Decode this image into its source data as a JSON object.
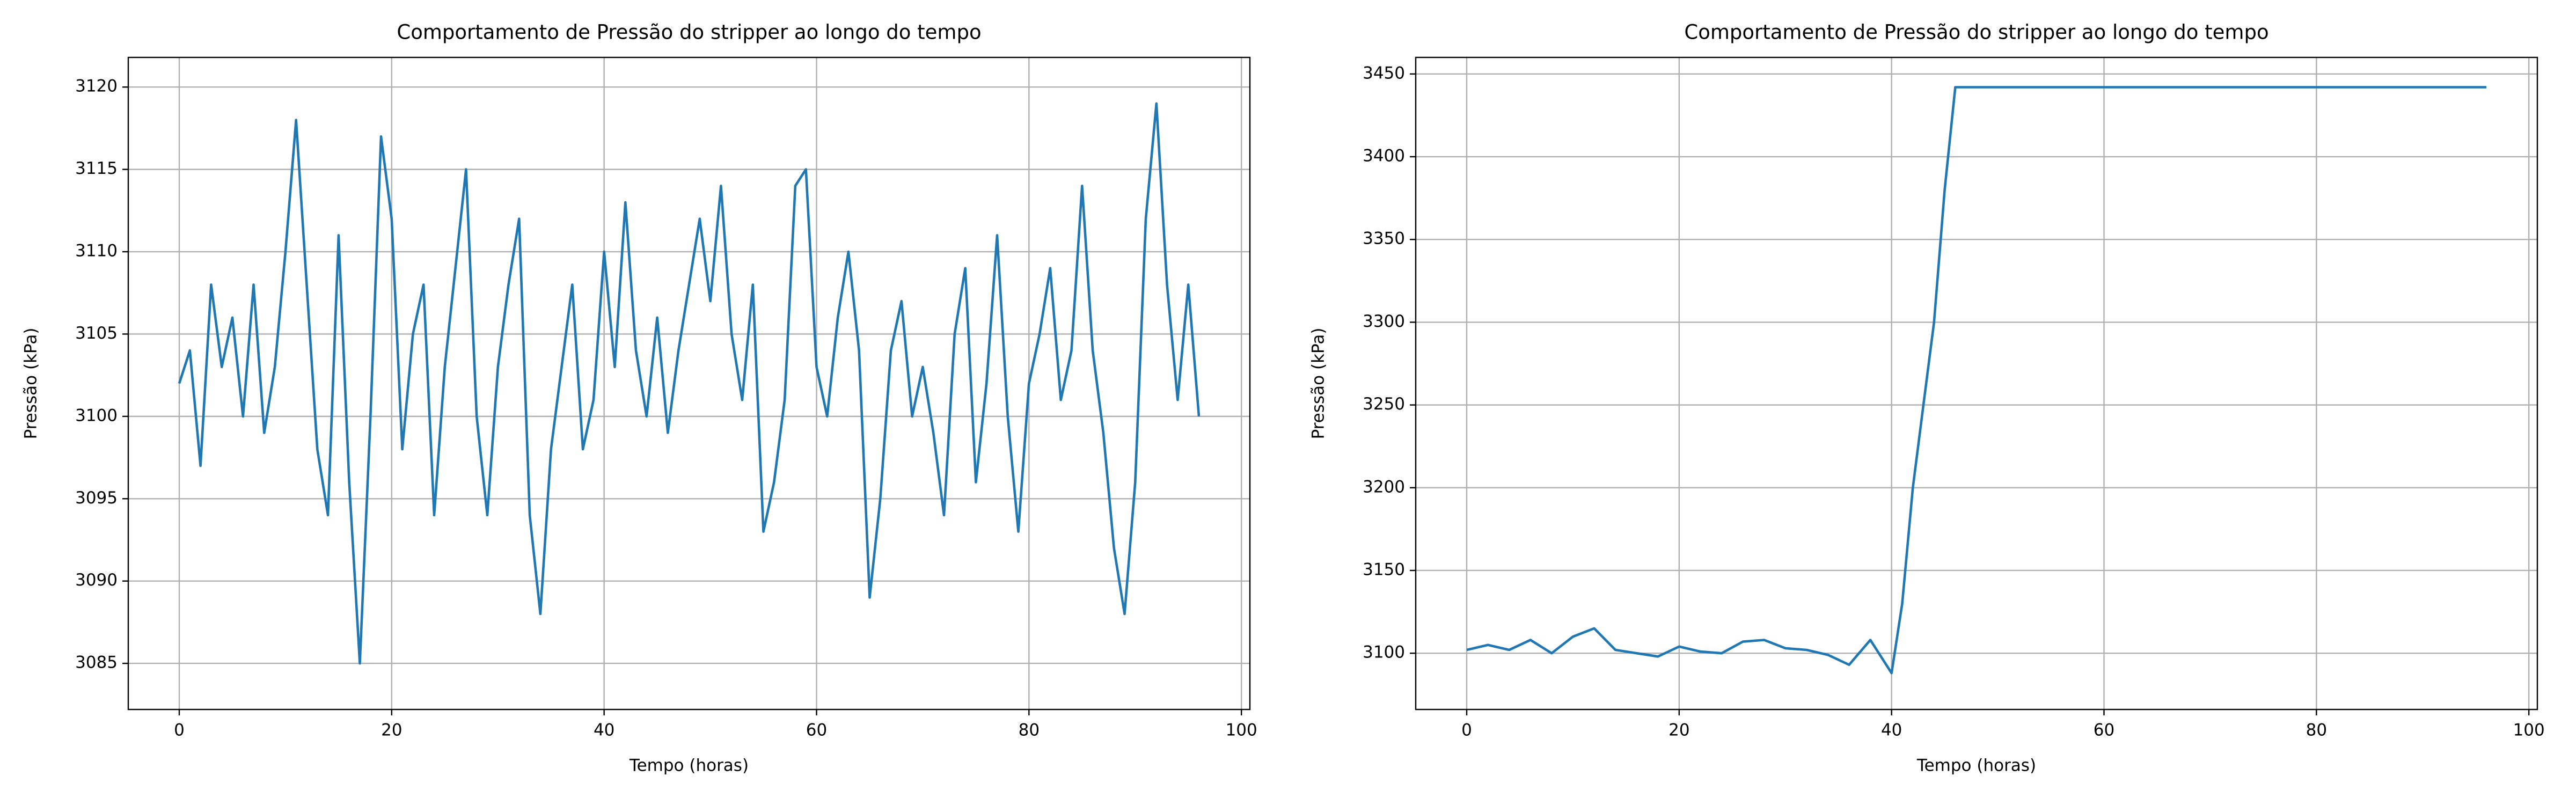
{
  "chart_data": [
    {
      "type": "line",
      "title": "Comportamento de Pressão do stripper ao longo do tempo",
      "xlabel": "Tempo (horas)",
      "ylabel": "Pressão (kPa)",
      "x": [
        0,
        1,
        2,
        3,
        4,
        5,
        6,
        7,
        8,
        9,
        10,
        11,
        12,
        13,
        14,
        15,
        16,
        17,
        18,
        19,
        20,
        21,
        22,
        23,
        24,
        25,
        26,
        27,
        28,
        29,
        30,
        31,
        32,
        33,
        34,
        35,
        36,
        37,
        38,
        39,
        40,
        41,
        42,
        43,
        44,
        45,
        46,
        47,
        48,
        49,
        50,
        51,
        52,
        53,
        54,
        55,
        56,
        57,
        58,
        59,
        60,
        61,
        62,
        63,
        64,
        65,
        66,
        67,
        68,
        69,
        70,
        71,
        72,
        73,
        74,
        75,
        76,
        77,
        78,
        79,
        80,
        81,
        82,
        83,
        84,
        85,
        86,
        87,
        88,
        89,
        90,
        91,
        92,
        93,
        94,
        95,
        96
      ],
      "series": [
        {
          "name": "Pressão",
          "color": "#1f77b4",
          "values": [
            3102,
            3104,
            3097,
            3108,
            3103,
            3106,
            3100,
            3108,
            3099,
            3103,
            3110,
            3118,
            3108,
            3098,
            3094,
            3111,
            3096,
            3085,
            3100,
            3117,
            3112,
            3098,
            3105,
            3108,
            3094,
            3103,
            3109,
            3115,
            3100,
            3094,
            3103,
            3108,
            3112,
            3094,
            3088,
            3098,
            3103,
            3108,
            3098,
            3101,
            3110,
            3103,
            3113,
            3104,
            3100,
            3106,
            3099,
            3104,
            3108,
            3112,
            3107,
            3114,
            3105,
            3101,
            3108,
            3093,
            3096,
            3101,
            3114,
            3115,
            3103,
            3100,
            3106,
            3110,
            3104,
            3089,
            3095,
            3104,
            3107,
            3100,
            3103,
            3099,
            3094,
            3105,
            3109,
            3096,
            3102,
            3111,
            3100,
            3093,
            3102,
            3105,
            3109,
            3101,
            3104,
            3114,
            3104,
            3099,
            3092,
            3088,
            3096,
            3112,
            3119,
            3108,
            3101,
            3108,
            3100
          ]
        }
      ],
      "xlim": [
        -4.8,
        100.8
      ],
      "xticks": [
        0,
        20,
        40,
        60,
        80,
        100
      ],
      "ylim": [
        3082.2,
        3121.8
      ],
      "yticks": [
        3085,
        3090,
        3095,
        3100,
        3105,
        3110,
        3115,
        3120
      ],
      "grid": true
    },
    {
      "type": "line",
      "title": "Comportamento de Pressão do stripper ao longo do tempo",
      "xlabel": "Tempo (horas)",
      "ylabel": "Pressão (kPa)",
      "x": [
        0,
        2,
        4,
        6,
        8,
        10,
        12,
        14,
        16,
        18,
        20,
        22,
        24,
        26,
        28,
        30,
        32,
        34,
        36,
        38,
        40,
        41,
        42,
        43,
        44,
        45,
        46,
        96
      ],
      "series": [
        {
          "name": "Pressão",
          "color": "#1f77b4",
          "values": [
            3102,
            3105,
            3102,
            3108,
            3100,
            3110,
            3115,
            3102,
            3100,
            3098,
            3104,
            3101,
            3100,
            3107,
            3108,
            3103,
            3102,
            3099,
            3093,
            3108,
            3088,
            3130,
            3200,
            3250,
            3300,
            3380,
            3442,
            3442
          ]
        }
      ],
      "xlim": [
        -4.8,
        100.8
      ],
      "xticks": [
        0,
        20,
        40,
        60,
        80,
        100
      ],
      "ylim": [
        3066,
        3460
      ],
      "yticks": [
        3100,
        3150,
        3200,
        3250,
        3300,
        3350,
        3400,
        3450
      ],
      "grid": true
    }
  ]
}
